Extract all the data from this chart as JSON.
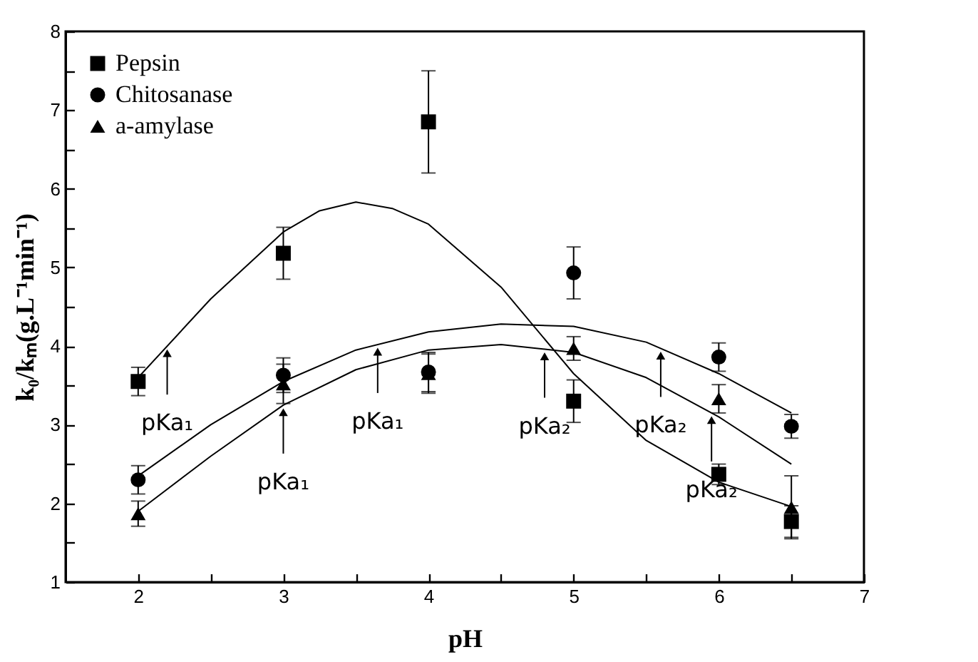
{
  "chart_data": {
    "type": "scatter",
    "xlabel": "pH",
    "ylabel": "k₀/kₘ(g.L⁻¹min⁻¹)",
    "legend": "top left",
    "xlim": [
      1.5,
      7
    ],
    "xticks": [
      2,
      {
        "value": 2.5,
        "label": null
      },
      3,
      {
        "value": 3.5,
        "label": null
      },
      4,
      {
        "value": 4.5,
        "label": null
      },
      5,
      {
        "value": 5.5,
        "label": null
      },
      6,
      {
        "value": 6.5,
        "label": null
      },
      7
    ],
    "ylim": [
      1,
      8
    ],
    "yticks": [
      1,
      {
        "value": 1.5,
        "label": null
      },
      2,
      {
        "value": 2.5,
        "label": null
      },
      3,
      {
        "value": 3.5,
        "label": null
      },
      4,
      {
        "value": 4.5,
        "label": null
      },
      5,
      {
        "value": 5.5,
        "label": null
      },
      6,
      {
        "value": 6.5,
        "label": null
      },
      7,
      {
        "value": 7.5,
        "label": null
      },
      8
    ],
    "series": [
      {
        "name": "Pepsin",
        "marker": "square",
        "color": "#000000",
        "x": [
          2,
          3,
          4,
          5,
          6,
          6.5
        ],
        "values": [
          3.55,
          5.18,
          6.85,
          3.3,
          2.37,
          1.77
        ],
        "errors": [
          0.18,
          0.33,
          0.65,
          0.27,
          0.13,
          0.2
        ]
      },
      {
        "name": "Chitosanase",
        "marker": "circle",
        "color": "#000000",
        "x": [
          2,
          3,
          4,
          5,
          6,
          6.5
        ],
        "values": [
          2.3,
          3.63,
          3.67,
          4.93,
          3.86,
          2.98
        ],
        "errors": [
          0.18,
          0.22,
          0.25,
          0.33,
          0.18,
          0.15
        ]
      },
      {
        "name": "a-amylase",
        "marker": "triangle",
        "color": "#000000",
        "x": [
          2,
          3,
          4,
          5,
          6,
          6.5
        ],
        "values": [
          1.87,
          3.52,
          3.65,
          3.97,
          3.33,
          1.95
        ],
        "errors": [
          0.16,
          0.25,
          0.25,
          0.15,
          0.18,
          0.4
        ]
      },
      {
        "type": "line",
        "color": "#000000",
        "x": [
          2,
          2.5,
          3,
          3.25,
          3.5,
          3.75,
          4,
          4.5,
          5,
          5.5,
          6,
          6.5
        ],
        "values": [
          3.6,
          4.6,
          5.45,
          5.72,
          5.83,
          5.75,
          5.55,
          4.75,
          3.65,
          2.8,
          2.27,
          1.96
        ]
      },
      {
        "type": "line",
        "color": "#000000",
        "x": [
          2,
          2.5,
          3,
          3.5,
          4,
          4.5,
          5,
          5.5,
          6,
          6.5
        ],
        "values": [
          2.35,
          3.0,
          3.55,
          3.95,
          4.18,
          4.28,
          4.25,
          4.05,
          3.65,
          3.15
        ]
      },
      {
        "type": "line",
        "color": "#000000",
        "x": [
          2,
          2.5,
          3,
          3.5,
          4,
          4.5,
          5,
          5.5,
          6,
          6.5
        ],
        "values": [
          1.9,
          2.6,
          3.25,
          3.7,
          3.95,
          4.02,
          3.92,
          3.6,
          3.1,
          2.5
        ]
      }
    ],
    "annotations": [
      {
        "text": "pKa₁",
        "x": 2.2,
        "y": 4.0
      },
      {
        "text": "pKa₁",
        "x": 3.0,
        "y": 3.25
      },
      {
        "text": "pKa₁",
        "x": 3.65,
        "y": 4.02
      },
      {
        "text": "pKa₂",
        "x": 4.8,
        "y": 3.96
      },
      {
        "text": "pKa₂",
        "x": 5.6,
        "y": 3.97
      },
      {
        "text": "pKa₂",
        "x": 5.95,
        "y": 3.15
      }
    ]
  }
}
